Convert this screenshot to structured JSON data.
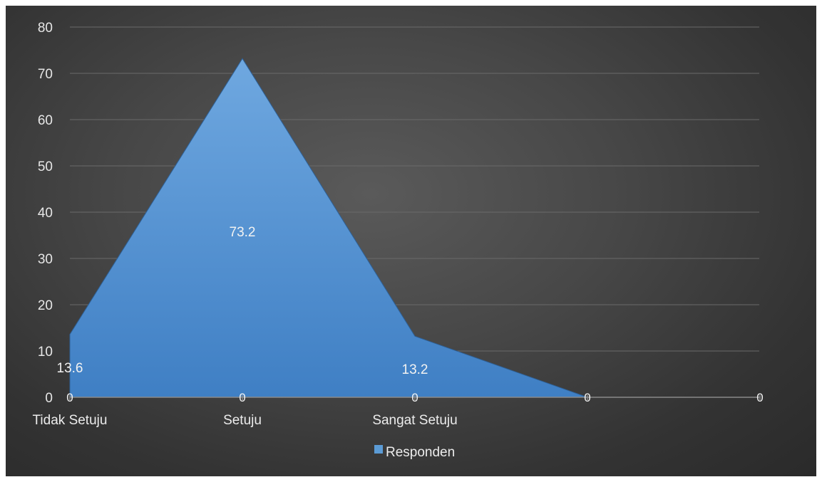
{
  "chart_data": {
    "type": "area",
    "categories": [
      "Tidak Setuju",
      "Setuju",
      "Sangat Setuju",
      "",
      ""
    ],
    "series": [
      {
        "name": "Responden",
        "values": [
          13.6,
          73.2,
          13.2,
          0,
          0
        ],
        "data_labels": [
          "13.6",
          "73.2",
          "13.2",
          "",
          ""
        ]
      }
    ],
    "baseline_labels": [
      "0",
      "0",
      "0",
      "0",
      "0"
    ],
    "ylim": [
      0,
      80
    ],
    "yticks": [
      "0",
      "10",
      "20",
      "30",
      "40",
      "50",
      "60",
      "70",
      "80"
    ],
    "title": "",
    "xlabel": "",
    "ylabel": "",
    "grid": true,
    "legend_position": "bottom",
    "colors": {
      "area_top": "#6fa8e0",
      "area_bottom": "#3f7fc4",
      "legend_swatch": "#5b9bd5",
      "gridline": "#6a6a6a",
      "axis": "#8a8a8a"
    }
  }
}
